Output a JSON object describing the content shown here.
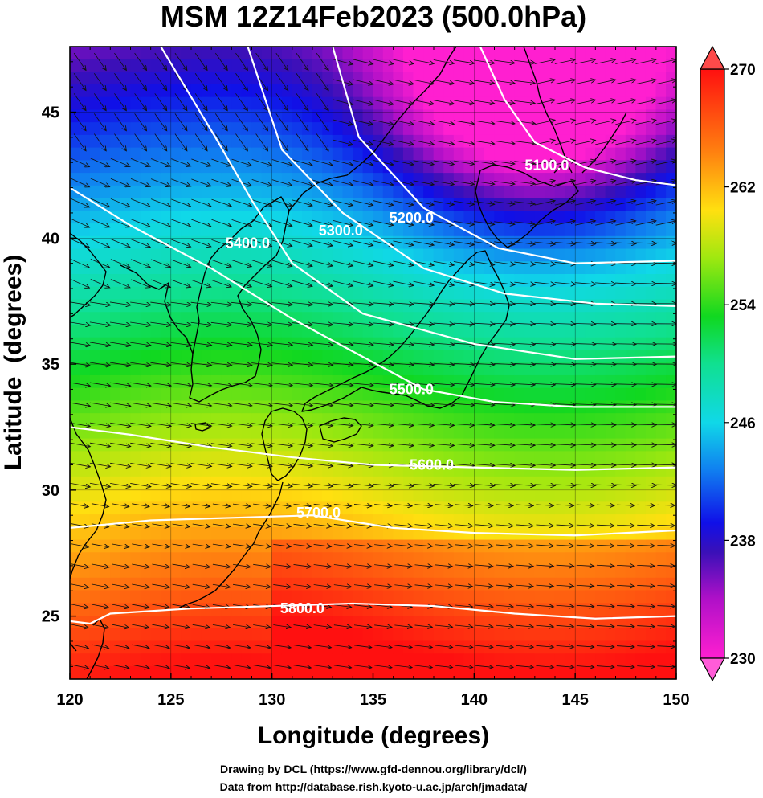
{
  "chart_data": {
    "type": "heatmap",
    "title": "MSM 12Z14Feb2023 (500.0hPa)",
    "xlabel": "Longitude (degrees)",
    "ylabel": "Latitude  (degrees)",
    "xlim": [
      120,
      150
    ],
    "ylim": [
      22.5,
      47.6
    ],
    "x_ticks": [
      120,
      125,
      130,
      135,
      140,
      145,
      150
    ],
    "y_ticks": [
      25,
      30,
      35,
      40,
      45
    ],
    "grid": true,
    "colorbar": {
      "range": [
        230,
        270
      ],
      "ticks": [
        230,
        238,
        246,
        254,
        262,
        270
      ],
      "extend": "both",
      "position": "right"
    },
    "contours": [
      {
        "label": "5100.0",
        "value": 5100,
        "label_lon": 143.6,
        "label_lat": 42.9,
        "points": [
          [
            140.3,
            47.6
          ],
          [
            141.5,
            45.5
          ],
          [
            143.0,
            43.8
          ],
          [
            145.5,
            42.8
          ],
          [
            148,
            42.3
          ],
          [
            150,
            42.1
          ]
        ]
      },
      {
        "label": "5200.0",
        "value": 5200,
        "label_lon": 136.9,
        "label_lat": 40.8,
        "points": [
          [
            133.0,
            47.6
          ],
          [
            134.3,
            44.0
          ],
          [
            137.5,
            41.2
          ],
          [
            141.2,
            39.6
          ],
          [
            145,
            39.0
          ],
          [
            150,
            39.1
          ]
        ]
      },
      {
        "label": "5300.0",
        "value": 5300,
        "label_lon": 133.4,
        "label_lat": 40.3,
        "points": [
          [
            128.8,
            47.6
          ],
          [
            130.5,
            43.5
          ],
          [
            133.5,
            41.0
          ],
          [
            137.5,
            38.8
          ],
          [
            141.5,
            37.8
          ],
          [
            146,
            37.4
          ],
          [
            150,
            37.3
          ]
        ]
      },
      {
        "label": "5400.0",
        "value": 5400,
        "label_lon": 128.8,
        "label_lat": 39.8,
        "points": [
          [
            124.5,
            47.6
          ],
          [
            127.2,
            44.0
          ],
          [
            129.0,
            41.5
          ],
          [
            131.0,
            39.0
          ],
          [
            134.5,
            37.0
          ],
          [
            140,
            35.8
          ],
          [
            145,
            35.2
          ],
          [
            150,
            35.3
          ]
        ]
      },
      {
        "label": "5500.0",
        "value": 5500,
        "label_lon": 136.9,
        "label_lat": 34.0,
        "points": [
          [
            120.0,
            42.0
          ],
          [
            123.0,
            40.5
          ],
          [
            127.0,
            38.8
          ],
          [
            131.0,
            36.8
          ],
          [
            134.0,
            35.5
          ],
          [
            137.5,
            34.0
          ],
          [
            141,
            33.5
          ],
          [
            145,
            33.3
          ],
          [
            150,
            33.3
          ]
        ]
      },
      {
        "label": "5600.0",
        "value": 5600,
        "label_lon": 137.9,
        "label_lat": 31.0,
        "points": [
          [
            120.0,
            32.5
          ],
          [
            123.0,
            32.2
          ],
          [
            127.0,
            31.7
          ],
          [
            131.0,
            31.3
          ],
          [
            135,
            31.0
          ],
          [
            140,
            30.9
          ],
          [
            145,
            30.8
          ],
          [
            150,
            30.9
          ]
        ]
      },
      {
        "label": "5700.0",
        "value": 5700,
        "label_lon": 132.3,
        "label_lat": 29.1,
        "points": [
          [
            120.0,
            28.5
          ],
          [
            124.0,
            28.8
          ],
          [
            128.0,
            28.9
          ],
          [
            132.0,
            29.0
          ],
          [
            136,
            28.5
          ],
          [
            140,
            28.3
          ],
          [
            145,
            28.2
          ],
          [
            150,
            28.4
          ]
        ]
      },
      {
        "label": "5800.0",
        "value": 5800,
        "label_lon": 131.5,
        "label_lat": 25.3,
        "points": [
          [
            120.0,
            24.8
          ],
          [
            121.0,
            24.7
          ],
          [
            122.0,
            25.1
          ],
          [
            126,
            25.3
          ],
          [
            130,
            25.4
          ],
          [
            134,
            25.5
          ],
          [
            138,
            25.4
          ],
          [
            142,
            25.1
          ],
          [
            146,
            24.9
          ],
          [
            150,
            25.0
          ]
        ]
      }
    ]
  },
  "credits": {
    "line1": "Drawing by DCL (https://www.gfd-dennou.org/library/dcl/)",
    "line2": "Data from http://database.rish.kyoto-u.ac.jp/arch/jmadata/"
  }
}
